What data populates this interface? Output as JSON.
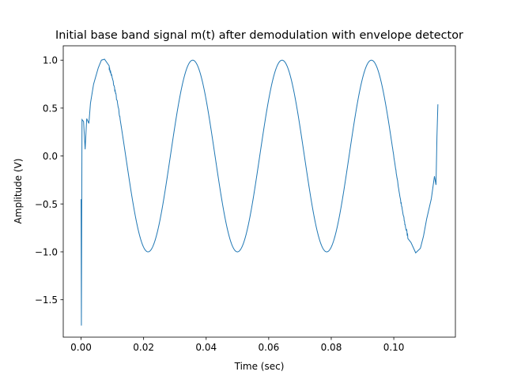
{
  "chart_data": {
    "type": "line",
    "title": "Initial base band signal m(t) after demodulation with envelope detector",
    "xlabel": "Time (sec)",
    "ylabel": "Amplitude (V)",
    "xlim": [
      -0.0057,
      0.1197
    ],
    "ylim": [
      -1.89,
      1.15
    ],
    "xticks": [
      0.0,
      0.02,
      0.04,
      0.06,
      0.08,
      0.1
    ],
    "xtick_labels": [
      "0.00",
      "0.02",
      "0.04",
      "0.06",
      "0.08",
      "0.10"
    ],
    "yticks": [
      -1.5,
      -1.0,
      -0.5,
      0.0,
      0.5,
      1.0
    ],
    "ytick_labels": [
      "−1.5",
      "−1.0",
      "−0.5",
      "0.0",
      "0.5",
      "1.0"
    ],
    "grid": false,
    "series": [
      {
        "color": "#1f77b4",
        "x_start": 0.0,
        "x_end": 0.114,
        "frequency_hz": 35,
        "amplitude": 1.0,
        "description_points": [
          [
            0.0,
            -0.45
          ],
          [
            0.0001,
            -1.77
          ],
          [
            0.0003,
            0.38
          ],
          [
            0.0008,
            0.36
          ],
          [
            0.0013,
            0.07
          ],
          [
            0.0018,
            0.39
          ],
          [
            0.0025,
            0.34
          ],
          [
            0.003,
            0.55
          ],
          [
            0.004,
            0.75
          ],
          [
            0.0055,
            0.92
          ],
          [
            0.0065,
            1.0
          ],
          [
            0.0075,
            1.01
          ],
          [
            0.009,
            0.94
          ],
          [
            0.0114,
            0.62
          ],
          [
            0.0143,
            0.0
          ],
          [
            0.0171,
            -0.62
          ],
          [
            0.0214,
            -1.0
          ],
          [
            0.0257,
            -0.62
          ],
          [
            0.0286,
            0.0
          ],
          [
            0.0314,
            0.62
          ],
          [
            0.0357,
            1.0
          ],
          [
            0.04,
            0.62
          ],
          [
            0.0429,
            0.0
          ],
          [
            0.0457,
            -0.62
          ],
          [
            0.05,
            -1.0
          ],
          [
            0.0543,
            -0.62
          ],
          [
            0.0571,
            0.0
          ],
          [
            0.06,
            0.62
          ],
          [
            0.0643,
            1.0
          ],
          [
            0.0686,
            0.62
          ],
          [
            0.0714,
            0.0
          ],
          [
            0.0743,
            -0.62
          ],
          [
            0.0786,
            -1.0
          ],
          [
            0.0829,
            -0.62
          ],
          [
            0.0857,
            0.0
          ],
          [
            0.0886,
            0.62
          ],
          [
            0.0929,
            1.0
          ],
          [
            0.0971,
            0.62
          ],
          [
            0.1,
            0.0
          ],
          [
            0.1029,
            -0.62
          ],
          [
            0.1055,
            -0.9
          ],
          [
            0.107,
            -1.0
          ],
          [
            0.1085,
            -0.95
          ],
          [
            0.1095,
            -0.85
          ],
          [
            0.1105,
            -0.65
          ],
          [
            0.112,
            -0.45
          ],
          [
            0.113,
            -0.2
          ],
          [
            0.1135,
            -0.3
          ],
          [
            0.1138,
            0.2
          ],
          [
            0.1141,
            0.55
          ]
        ]
      }
    ]
  }
}
